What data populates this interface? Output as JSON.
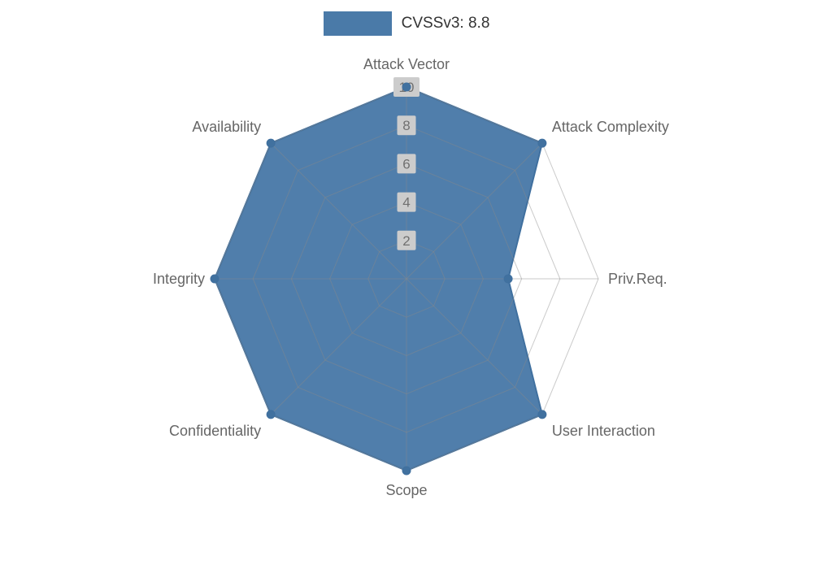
{
  "legend": {
    "label": "CVSSv3: 8.8"
  },
  "chart_data": {
    "type": "radar",
    "title": "CVSSv3: 8.8",
    "categories": [
      "Attack Vector",
      "Attack Complexity",
      "Priv.Req.",
      "User Interaction",
      "Scope",
      "Confidentiality",
      "Integrity",
      "Availability"
    ],
    "series": [
      {
        "name": "CVSSv3: 8.8",
        "values": [
          10,
          10,
          5.3,
          10,
          10,
          10,
          10,
          10
        ]
      }
    ],
    "rmax": 10,
    "ticks": [
      2,
      4,
      6,
      8,
      10
    ],
    "grid": true,
    "legend_position": "top",
    "colors": {
      "fill": "#4a7aa8",
      "stroke": "#40709f",
      "marker": "#41719f",
      "grid": "#8a8a8a",
      "axis_label": "#666666",
      "tick_text": "#707070",
      "tick_bg": "#cccccc"
    }
  }
}
